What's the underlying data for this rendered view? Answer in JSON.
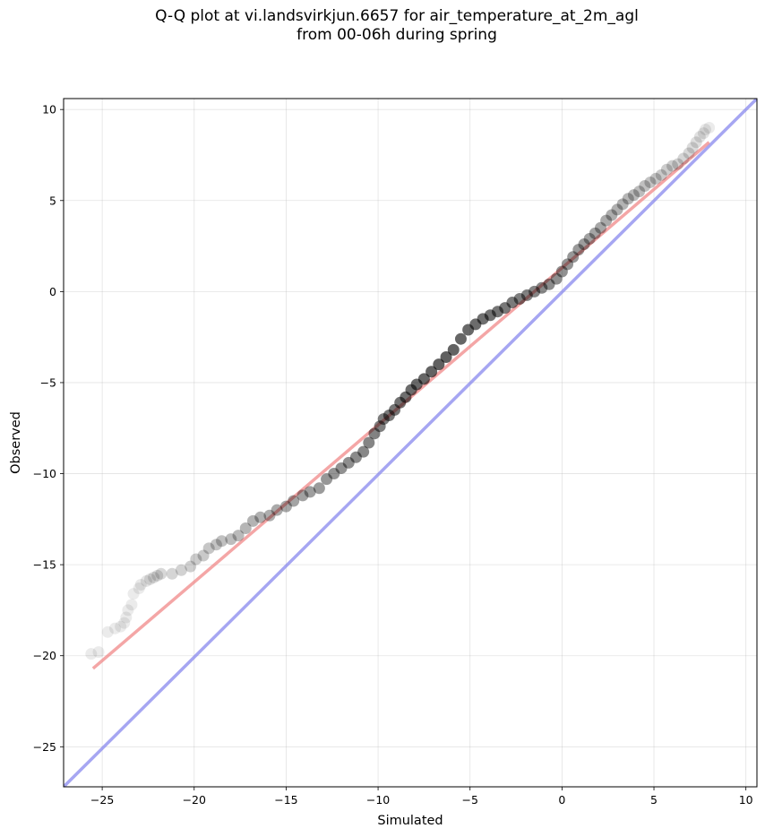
{
  "chart_data": {
    "type": "scatter",
    "title_line1": "Q-Q plot at vi.landsvirkjun.6657 for air_temperature_at_2m_agl",
    "title_line2": "from 00-06h during spring",
    "xlabel": "Simulated",
    "ylabel": "Observed",
    "xlim": [
      -27.1,
      10.6
    ],
    "ylim": [
      -27.2,
      10.6
    ],
    "xticks": [
      -25,
      -20,
      -15,
      -10,
      -5,
      0,
      5,
      10
    ],
    "yticks": [
      -25,
      -20,
      -15,
      -10,
      -5,
      0,
      5,
      10
    ],
    "grid": true,
    "quantile_points": {
      "color": "#000000",
      "x": [
        -25.6,
        -25.2,
        -24.7,
        -24.3,
        -24.0,
        -23.8,
        -23.7,
        -23.6,
        -23.4,
        -23.3,
        -23.0,
        -22.9,
        -22.6,
        -22.4,
        -22.2,
        -22.0,
        -21.8,
        -21.2,
        -20.7,
        -20.2,
        -19.9,
        -19.5,
        -19.2,
        -18.8,
        -18.5,
        -18.0,
        -17.6,
        -17.2,
        -16.8,
        -16.4,
        -15.9,
        -15.5,
        -15.0,
        -14.6,
        -14.1,
        -13.7,
        -13.2,
        -12.8,
        -12.4,
        -12.0,
        -11.6,
        -11.2,
        -10.8,
        -10.5,
        -10.2,
        -9.9,
        -9.7,
        -9.4,
        -9.1,
        -8.8,
        -8.5,
        -8.2,
        -7.9,
        -7.5,
        -7.1,
        -6.7,
        -6.3,
        -5.9,
        -5.5,
        -5.1,
        -4.7,
        -4.3,
        -3.9,
        -3.5,
        -3.1,
        -2.7,
        -2.3,
        -1.9,
        -1.5,
        -1.1,
        -0.7,
        -0.3,
        0.0,
        0.3,
        0.6,
        0.9,
        1.2,
        1.5,
        1.8,
        2.1,
        2.4,
        2.7,
        3.0,
        3.3,
        3.6,
        3.9,
        4.2,
        4.5,
        4.8,
        5.1,
        5.4,
        5.7,
        6.0,
        6.3,
        6.6,
        6.9,
        7.1,
        7.3,
        7.5,
        7.7,
        7.8,
        8.0
      ],
      "y": [
        -19.9,
        -19.8,
        -18.7,
        -18.5,
        -18.4,
        -18.2,
        -17.9,
        -17.5,
        -17.2,
        -16.6,
        -16.3,
        -16.1,
        -15.9,
        -15.8,
        -15.7,
        -15.6,
        -15.5,
        -15.5,
        -15.3,
        -15.1,
        -14.7,
        -14.5,
        -14.1,
        -13.9,
        -13.7,
        -13.6,
        -13.4,
        -13.0,
        -12.6,
        -12.4,
        -12.3,
        -12.0,
        -11.8,
        -11.5,
        -11.2,
        -11.0,
        -10.8,
        -10.3,
        -10.0,
        -9.7,
        -9.4,
        -9.1,
        -8.8,
        -8.3,
        -7.8,
        -7.4,
        -7.0,
        -6.8,
        -6.5,
        -6.1,
        -5.8,
        -5.4,
        -5.1,
        -4.8,
        -4.4,
        -4.0,
        -3.6,
        -3.2,
        -2.6,
        -2.1,
        -1.8,
        -1.5,
        -1.3,
        -1.1,
        -0.9,
        -0.6,
        -0.4,
        -0.2,
        0.0,
        0.2,
        0.4,
        0.7,
        1.1,
        1.5,
        1.9,
        2.3,
        2.6,
        2.9,
        3.2,
        3.5,
        3.9,
        4.2,
        4.5,
        4.8,
        5.1,
        5.3,
        5.5,
        5.8,
        6.0,
        6.2,
        6.4,
        6.7,
        6.9,
        7.0,
        7.3,
        7.6,
        7.9,
        8.2,
        8.5,
        8.7,
        8.9,
        9.0
      ]
    },
    "fit_line": {
      "color": "#f08080",
      "x": [
        -25.5,
        8.0
      ],
      "y": [
        -20.7,
        8.2
      ]
    },
    "identity_line": {
      "color": "#8888ee",
      "x": [
        -27.1,
        10.6
      ],
      "y": [
        -27.2,
        10.6
      ]
    }
  }
}
